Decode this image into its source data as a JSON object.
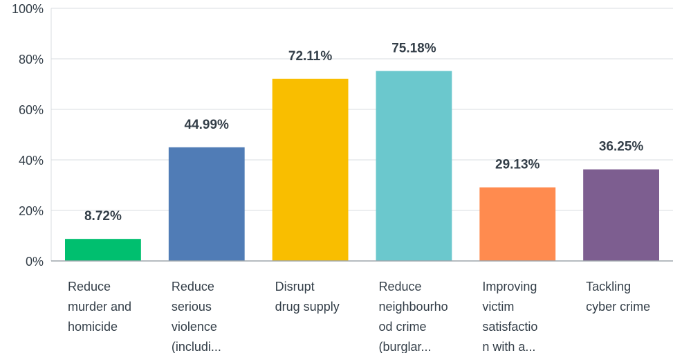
{
  "chart_data": {
    "type": "bar",
    "title": "",
    "xlabel": "",
    "ylabel": "",
    "ylim": [
      0,
      100
    ],
    "yticks": [
      0,
      20,
      40,
      60,
      80,
      100
    ],
    "ytick_labels": [
      "0%",
      "20%",
      "40%",
      "60%",
      "80%",
      "100%"
    ],
    "grid": true,
    "legend": "none",
    "categories": [
      [
        "Reduce",
        "murder and",
        "homicide"
      ],
      [
        "Reduce",
        "serious",
        "violence",
        "(includi..."
      ],
      [
        "Disrupt",
        "drug supply"
      ],
      [
        "Reduce",
        "neighbourho",
        "od crime",
        "(burglar..."
      ],
      [
        "Improving",
        "victim",
        "satisfactio",
        "n with a..."
      ],
      [
        "Tackling",
        "cyber crime"
      ]
    ],
    "values": [
      8.72,
      44.99,
      72.11,
      75.18,
      29.13,
      36.25
    ],
    "value_labels": [
      "8.72%",
      "44.99%",
      "72.11%",
      "75.18%",
      "29.13%",
      "36.25%"
    ],
    "colors": [
      "#00bf6f",
      "#507cb6",
      "#f9be00",
      "#6bc8cd",
      "#ff8b4f",
      "#7d5e90"
    ],
    "grid_color": "#d9dde0",
    "axis_color": "#9da5ab"
  }
}
